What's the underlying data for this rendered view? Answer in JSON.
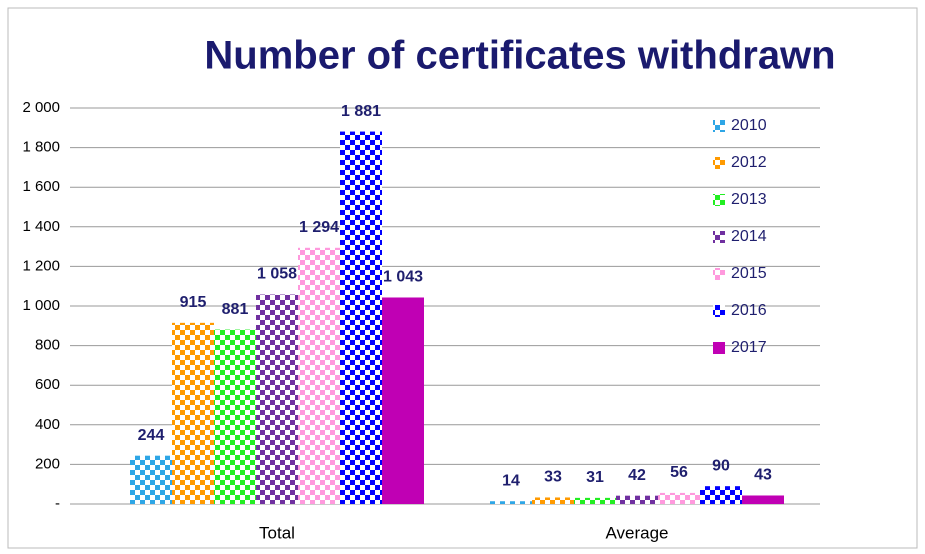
{
  "chart_data": {
    "type": "bar",
    "title": "Number of certificates withdrawn",
    "categories": [
      "Total",
      "Average"
    ],
    "series": [
      {
        "name": "2010",
        "color": "#2ea6e6",
        "pattern": "checker",
        "values": [
          244,
          14
        ]
      },
      {
        "name": "2012",
        "color": "#ff9a00",
        "pattern": "checker",
        "values": [
          915,
          33
        ]
      },
      {
        "name": "2013",
        "color": "#22ee22",
        "pattern": "checker",
        "values": [
          881,
          31
        ]
      },
      {
        "name": "2014",
        "color": "#7030a0",
        "pattern": "checker",
        "values": [
          1058,
          42
        ],
        "value_labels": [
          "1 058",
          "42"
        ]
      },
      {
        "name": "2015",
        "color": "#ff99dd",
        "pattern": "checker",
        "values": [
          1294,
          56
        ],
        "value_labels": [
          "1 294",
          "56"
        ]
      },
      {
        "name": "2016",
        "color": "#0000ff",
        "pattern": "checker",
        "values": [
          1881,
          90
        ],
        "value_labels": [
          "1 881",
          "90"
        ]
      },
      {
        "name": "2017",
        "color": "#c000b4",
        "pattern": "solid",
        "values": [
          1043,
          43
        ],
        "value_labels": [
          "1 043",
          "43"
        ]
      }
    ],
    "ylim": [
      0,
      2000
    ],
    "yticks": [
      {
        "value": 0,
        "label": "-"
      },
      200,
      400,
      600,
      800,
      {
        "value": 1000,
        "label": "1 000"
      },
      {
        "value": 1200,
        "label": "1 200"
      },
      {
        "value": 1400,
        "label": "1 400"
      },
      {
        "value": 1600,
        "label": "1 600"
      },
      {
        "value": 1800,
        "label": "1 800"
      },
      {
        "value": 2000,
        "label": "2 000"
      }
    ],
    "grid": true,
    "legend": "right"
  }
}
